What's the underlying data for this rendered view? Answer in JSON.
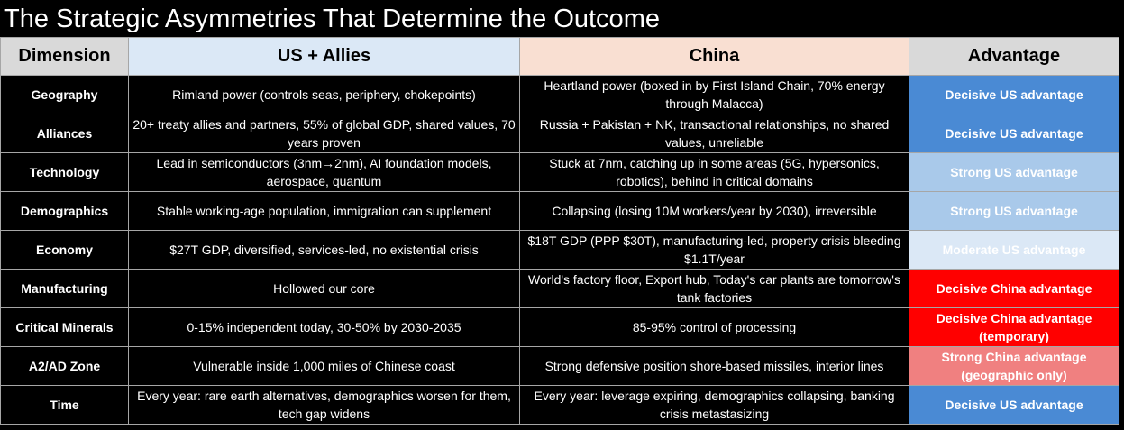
{
  "title": "The Strategic Asymmetries That Determine the Outcome",
  "headers": {
    "dimension": "Dimension",
    "us": "US + Allies",
    "china": "China",
    "advantage": "Advantage"
  },
  "colors": {
    "decisive_us": "#4a8ad4",
    "strong_us": "#a9c9ea",
    "moderate_us": "#dbe8f6",
    "decisive_china": "#ff0000",
    "strong_china": "#f08080"
  },
  "rows": [
    {
      "dimension": "Geography",
      "us": "Rimland power (controls seas, periphery, chokepoints)",
      "china": "Heartland power (boxed in by First Island Chain, 70% energy through Malacca)",
      "advantage": "Decisive US advantage",
      "advantage_color": "#4a8ad4"
    },
    {
      "dimension": "Alliances",
      "us": "20+ treaty allies and partners, 55% of global GDP, shared values, 70 years proven",
      "china": "Russia + Pakistan + NK, transactional relationships, no shared values, unreliable",
      "advantage": "Decisive US advantage",
      "advantage_color": "#4a8ad4"
    },
    {
      "dimension": "Technology",
      "us": "Lead in semiconductors (3nm→2nm), AI foundation models, aerospace, quantum",
      "china": "Stuck at 7nm, catching up in some areas (5G, hypersonics, robotics), behind in critical domains",
      "advantage": "Strong US advantage",
      "advantage_color": "#a9c9ea"
    },
    {
      "dimension": "Demographics",
      "us": "Stable working-age population, immigration can supplement",
      "china": "Collapsing (losing 10M workers/year by 2030), irreversible",
      "advantage": "Strong US advantage",
      "advantage_color": "#a9c9ea"
    },
    {
      "dimension": "Economy",
      "us": "$27T GDP, diversified, services-led, no existential crisis",
      "china": "$18T GDP (PPP $30T), manufacturing-led, property crisis bleeding $1.1T/year",
      "advantage": "Moderate US advantage",
      "advantage_color": "#dbe8f6"
    },
    {
      "dimension": "Manufacturing",
      "us": "Hollowed our core",
      "china": "World's factory floor, Export hub, Today's car plants are tomorrow's tank factories",
      "advantage": "Decisive China advantage",
      "advantage_color": "#ff0000"
    },
    {
      "dimension": "Critical Minerals",
      "us": "0-15% independent today, 30-50% by 2030-2035",
      "china": "85-95% control of processing",
      "advantage": "Decisive China advantage (temporary)",
      "advantage_color": "#ff0000"
    },
    {
      "dimension": "A2/AD Zone",
      "us": "Vulnerable inside 1,000 miles of Chinese coast",
      "china": "Strong defensive position shore-based missiles, interior lines",
      "advantage": "Strong China advantage (geographic only)",
      "advantage_color": "#f08080"
    },
    {
      "dimension": "Time",
      "us": "Every year: rare earth alternatives, demographics worsen for them, tech gap widens",
      "china": "Every year: leverage expiring, demographics collapsing, banking crisis metastasizing",
      "advantage": "Decisive US advantage",
      "advantage_color": "#4a8ad4"
    }
  ]
}
